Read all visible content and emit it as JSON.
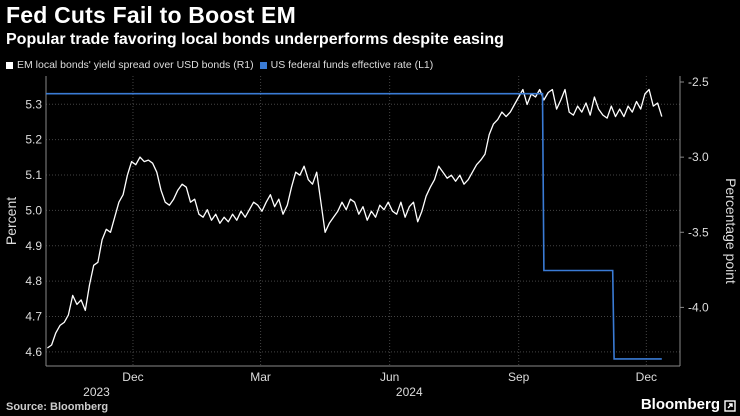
{
  "header": {
    "title": "Fed Cuts Fail to Boost EM",
    "subtitle": "Popular trade favoring local bonds underperforms despite easing"
  },
  "footer": {
    "source": "Source: Bloomberg",
    "brand": "Bloomberg"
  },
  "colors": {
    "spread": "#ffffff",
    "fedfunds": "#3a7bd5",
    "grid": "#444444",
    "background": "#000000"
  },
  "chart_data": {
    "type": "line",
    "title": "Fed Cuts Fail to Boost EM",
    "subtitle": "Popular trade favoring local bonds underperforms despite easing",
    "left_axis": {
      "label": "Percent",
      "ticks": [
        "4.6",
        "4.7",
        "4.8",
        "4.9",
        "5.0",
        "5.1",
        "5.2",
        "5.3"
      ],
      "range": [
        4.56,
        5.38
      ]
    },
    "right_axis": {
      "label": "Percentage point",
      "ticks": [
        "-2.5",
        "-3.0",
        "-3.5",
        "-4.0"
      ],
      "range": [
        -4.39,
        -2.46
      ]
    },
    "x_axis": {
      "range": [
        "2023-09-30",
        "2024-12-25"
      ],
      "ticks": [
        {
          "date": "2023-12-01",
          "label": "Dec"
        },
        {
          "date": "2024-03-01",
          "label": "Mar"
        },
        {
          "date": "2024-06-01",
          "label": "Jun"
        },
        {
          "date": "2024-09-01",
          "label": "Sep"
        },
        {
          "date": "2024-12-01",
          "label": "Dec"
        }
      ],
      "year_labels": [
        {
          "date": "2023-11-05",
          "label": "2023"
        },
        {
          "date": "2024-06-15",
          "label": "2024"
        }
      ]
    },
    "grid": true,
    "legend_position": "top-left",
    "series": [
      {
        "name": "EM local bonds' yield spread over USD bonds (R1)",
        "axis": "right",
        "points": [
          [
            "2023-10-01",
            -4.27
          ],
          [
            "2023-10-04",
            -4.25
          ],
          [
            "2023-10-07",
            -4.17
          ],
          [
            "2023-10-10",
            -4.12
          ],
          [
            "2023-10-13",
            -4.1
          ],
          [
            "2023-10-16",
            -4.05
          ],
          [
            "2023-10-19",
            -3.92
          ],
          [
            "2023-10-22",
            -3.98
          ],
          [
            "2023-10-25",
            -3.95
          ],
          [
            "2023-10-28",
            -4.02
          ],
          [
            "2023-10-31",
            -3.85
          ],
          [
            "2023-11-03",
            -3.72
          ],
          [
            "2023-11-06",
            -3.7
          ],
          [
            "2023-11-09",
            -3.55
          ],
          [
            "2023-11-12",
            -3.48
          ],
          [
            "2023-11-15",
            -3.5
          ],
          [
            "2023-11-18",
            -3.4
          ],
          [
            "2023-11-21",
            -3.3
          ],
          [
            "2023-11-24",
            -3.25
          ],
          [
            "2023-11-27",
            -3.12
          ],
          [
            "2023-11-30",
            -3.03
          ],
          [
            "2023-12-03",
            -3.05
          ],
          [
            "2023-12-06",
            -3.0
          ],
          [
            "2023-12-09",
            -3.03
          ],
          [
            "2023-12-12",
            -3.02
          ],
          [
            "2023-12-15",
            -3.04
          ],
          [
            "2023-12-18",
            -3.1
          ],
          [
            "2023-12-21",
            -3.22
          ],
          [
            "2023-12-24",
            -3.3
          ],
          [
            "2023-12-27",
            -3.32
          ],
          [
            "2023-12-30",
            -3.28
          ],
          [
            "2024-01-02",
            -3.22
          ],
          [
            "2024-01-05",
            -3.18
          ],
          [
            "2024-01-08",
            -3.2
          ],
          [
            "2024-01-11",
            -3.3
          ],
          [
            "2024-01-14",
            -3.28
          ],
          [
            "2024-01-17",
            -3.38
          ],
          [
            "2024-01-20",
            -3.4
          ],
          [
            "2024-01-23",
            -3.35
          ],
          [
            "2024-01-26",
            -3.42
          ],
          [
            "2024-01-29",
            -3.38
          ],
          [
            "2024-02-01",
            -3.44
          ],
          [
            "2024-02-04",
            -3.4
          ],
          [
            "2024-02-07",
            -3.43
          ],
          [
            "2024-02-10",
            -3.38
          ],
          [
            "2024-02-13",
            -3.42
          ],
          [
            "2024-02-16",
            -3.36
          ],
          [
            "2024-02-19",
            -3.4
          ],
          [
            "2024-02-22",
            -3.35
          ],
          [
            "2024-02-25",
            -3.3
          ],
          [
            "2024-02-28",
            -3.32
          ],
          [
            "2024-03-02",
            -3.36
          ],
          [
            "2024-03-05",
            -3.3
          ],
          [
            "2024-03-08",
            -3.25
          ],
          [
            "2024-03-11",
            -3.33
          ],
          [
            "2024-03-14",
            -3.28
          ],
          [
            "2024-03-17",
            -3.38
          ],
          [
            "2024-03-20",
            -3.32
          ],
          [
            "2024-03-23",
            -3.2
          ],
          [
            "2024-03-26",
            -3.1
          ],
          [
            "2024-03-29",
            -3.12
          ],
          [
            "2024-04-01",
            -3.06
          ],
          [
            "2024-04-04",
            -3.15
          ],
          [
            "2024-04-07",
            -3.18
          ],
          [
            "2024-04-10",
            -3.1
          ],
          [
            "2024-04-13",
            -3.3
          ],
          [
            "2024-04-16",
            -3.5
          ],
          [
            "2024-04-19",
            -3.44
          ],
          [
            "2024-04-22",
            -3.4
          ],
          [
            "2024-04-25",
            -3.36
          ],
          [
            "2024-04-28",
            -3.3
          ],
          [
            "2024-05-01",
            -3.35
          ],
          [
            "2024-05-04",
            -3.28
          ],
          [
            "2024-05-07",
            -3.3
          ],
          [
            "2024-05-10",
            -3.38
          ],
          [
            "2024-05-13",
            -3.33
          ],
          [
            "2024-05-16",
            -3.42
          ],
          [
            "2024-05-19",
            -3.36
          ],
          [
            "2024-05-22",
            -3.4
          ],
          [
            "2024-05-25",
            -3.32
          ],
          [
            "2024-05-28",
            -3.35
          ],
          [
            "2024-05-31",
            -3.3
          ],
          [
            "2024-06-03",
            -3.36
          ],
          [
            "2024-06-06",
            -3.38
          ],
          [
            "2024-06-09",
            -3.3
          ],
          [
            "2024-06-12",
            -3.4
          ],
          [
            "2024-06-15",
            -3.33
          ],
          [
            "2024-06-18",
            -3.3
          ],
          [
            "2024-06-21",
            -3.43
          ],
          [
            "2024-06-24",
            -3.36
          ],
          [
            "2024-06-27",
            -3.26
          ],
          [
            "2024-06-30",
            -3.2
          ],
          [
            "2024-07-03",
            -3.15
          ],
          [
            "2024-07-06",
            -3.06
          ],
          [
            "2024-07-09",
            -3.1
          ],
          [
            "2024-07-12",
            -3.14
          ],
          [
            "2024-07-15",
            -3.12
          ],
          [
            "2024-07-18",
            -3.16
          ],
          [
            "2024-07-21",
            -3.12
          ],
          [
            "2024-07-24",
            -3.18
          ],
          [
            "2024-07-27",
            -3.15
          ],
          [
            "2024-07-30",
            -3.1
          ],
          [
            "2024-08-02",
            -3.05
          ],
          [
            "2024-08-05",
            -3.02
          ],
          [
            "2024-08-08",
            -2.98
          ],
          [
            "2024-08-11",
            -2.85
          ],
          [
            "2024-08-14",
            -2.78
          ],
          [
            "2024-08-17",
            -2.75
          ],
          [
            "2024-08-20",
            -2.7
          ],
          [
            "2024-08-23",
            -2.73
          ],
          [
            "2024-08-26",
            -2.7
          ],
          [
            "2024-08-29",
            -2.65
          ],
          [
            "2024-09-01",
            -2.6
          ],
          [
            "2024-09-04",
            -2.55
          ],
          [
            "2024-09-07",
            -2.65
          ],
          [
            "2024-09-10",
            -2.58
          ],
          [
            "2024-09-13",
            -2.6
          ],
          [
            "2024-09-16",
            -2.55
          ],
          [
            "2024-09-19",
            -2.62
          ],
          [
            "2024-09-22",
            -2.57
          ],
          [
            "2024-09-25",
            -2.55
          ],
          [
            "2024-09-28",
            -2.68
          ],
          [
            "2024-10-01",
            -2.62
          ],
          [
            "2024-10-04",
            -2.55
          ],
          [
            "2024-10-07",
            -2.7
          ],
          [
            "2024-10-10",
            -2.72
          ],
          [
            "2024-10-13",
            -2.66
          ],
          [
            "2024-10-16",
            -2.7
          ],
          [
            "2024-10-19",
            -2.64
          ],
          [
            "2024-10-22",
            -2.72
          ],
          [
            "2024-10-25",
            -2.6
          ],
          [
            "2024-10-28",
            -2.68
          ],
          [
            "2024-10-31",
            -2.72
          ],
          [
            "2024-11-03",
            -2.74
          ],
          [
            "2024-11-06",
            -2.66
          ],
          [
            "2024-11-09",
            -2.73
          ],
          [
            "2024-11-12",
            -2.68
          ],
          [
            "2024-11-15",
            -2.73
          ],
          [
            "2024-11-18",
            -2.66
          ],
          [
            "2024-11-21",
            -2.7
          ],
          [
            "2024-11-24",
            -2.63
          ],
          [
            "2024-11-27",
            -2.68
          ],
          [
            "2024-11-30",
            -2.58
          ],
          [
            "2024-12-03",
            -2.55
          ],
          [
            "2024-12-06",
            -2.66
          ],
          [
            "2024-12-09",
            -2.64
          ],
          [
            "2024-12-12",
            -2.73
          ]
        ]
      },
      {
        "name": "US federal funds effective rate (L1)",
        "axis": "left",
        "points": [
          [
            "2023-09-30",
            5.33
          ],
          [
            "2024-09-18",
            5.33
          ],
          [
            "2024-09-19",
            4.83
          ],
          [
            "2024-11-07",
            4.83
          ],
          [
            "2024-11-08",
            4.58
          ],
          [
            "2024-12-12",
            4.58
          ]
        ]
      }
    ]
  }
}
